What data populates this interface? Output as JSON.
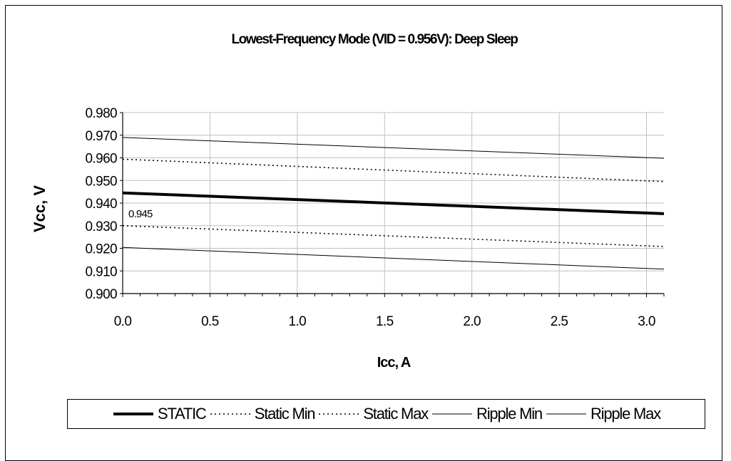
{
  "chart_data": {
    "type": "line",
    "title": "Lowest-Frequency Mode (VID = 0.956V): Deep Sleep",
    "xlabel": "Icc, A",
    "ylabel": "Vcc, V",
    "xlim": [
      0,
      3.1
    ],
    "ylim": [
      0.9,
      0.98
    ],
    "xticks": [
      "0.0",
      "0.5",
      "1.0",
      "1.5",
      "2.0",
      "2.5",
      "3.0"
    ],
    "xtick_values": [
      0,
      0.5,
      1.0,
      1.5,
      2.0,
      2.5,
      3.0
    ],
    "yticks": [
      "0.900",
      "0.910",
      "0.920",
      "0.930",
      "0.940",
      "0.950",
      "0.960",
      "0.970",
      "0.980"
    ],
    "ytick_values": [
      0.9,
      0.91,
      0.92,
      0.93,
      0.94,
      0.95,
      0.96,
      0.97,
      0.98
    ],
    "grid": true,
    "legend_position": "bottom",
    "annotation": {
      "text": "0.945",
      "x": 0.0,
      "y": 0.945
    },
    "series": [
      {
        "name": "STATIC",
        "style": "thick-solid",
        "x": [
          0,
          3.1
        ],
        "y": [
          0.9445,
          0.9353
        ]
      },
      {
        "name": "Static Min",
        "style": "dotted",
        "x": [
          0,
          3.1
        ],
        "y": [
          0.93,
          0.9208
        ]
      },
      {
        "name": "Static Max",
        "style": "dotted",
        "x": [
          0,
          3.1
        ],
        "y": [
          0.9594,
          0.9495
        ]
      },
      {
        "name": "Ripple Min",
        "style": "thin-solid",
        "x": [
          0,
          3.1
        ],
        "y": [
          0.9204,
          0.9108
        ]
      },
      {
        "name": "Ripple Max",
        "style": "thin-solid",
        "x": [
          0,
          3.1
        ],
        "y": [
          0.969,
          0.9598
        ]
      }
    ],
    "colors": {
      "line": "#000000",
      "grid": "#c0c0c0",
      "background": "#ffffff"
    }
  }
}
